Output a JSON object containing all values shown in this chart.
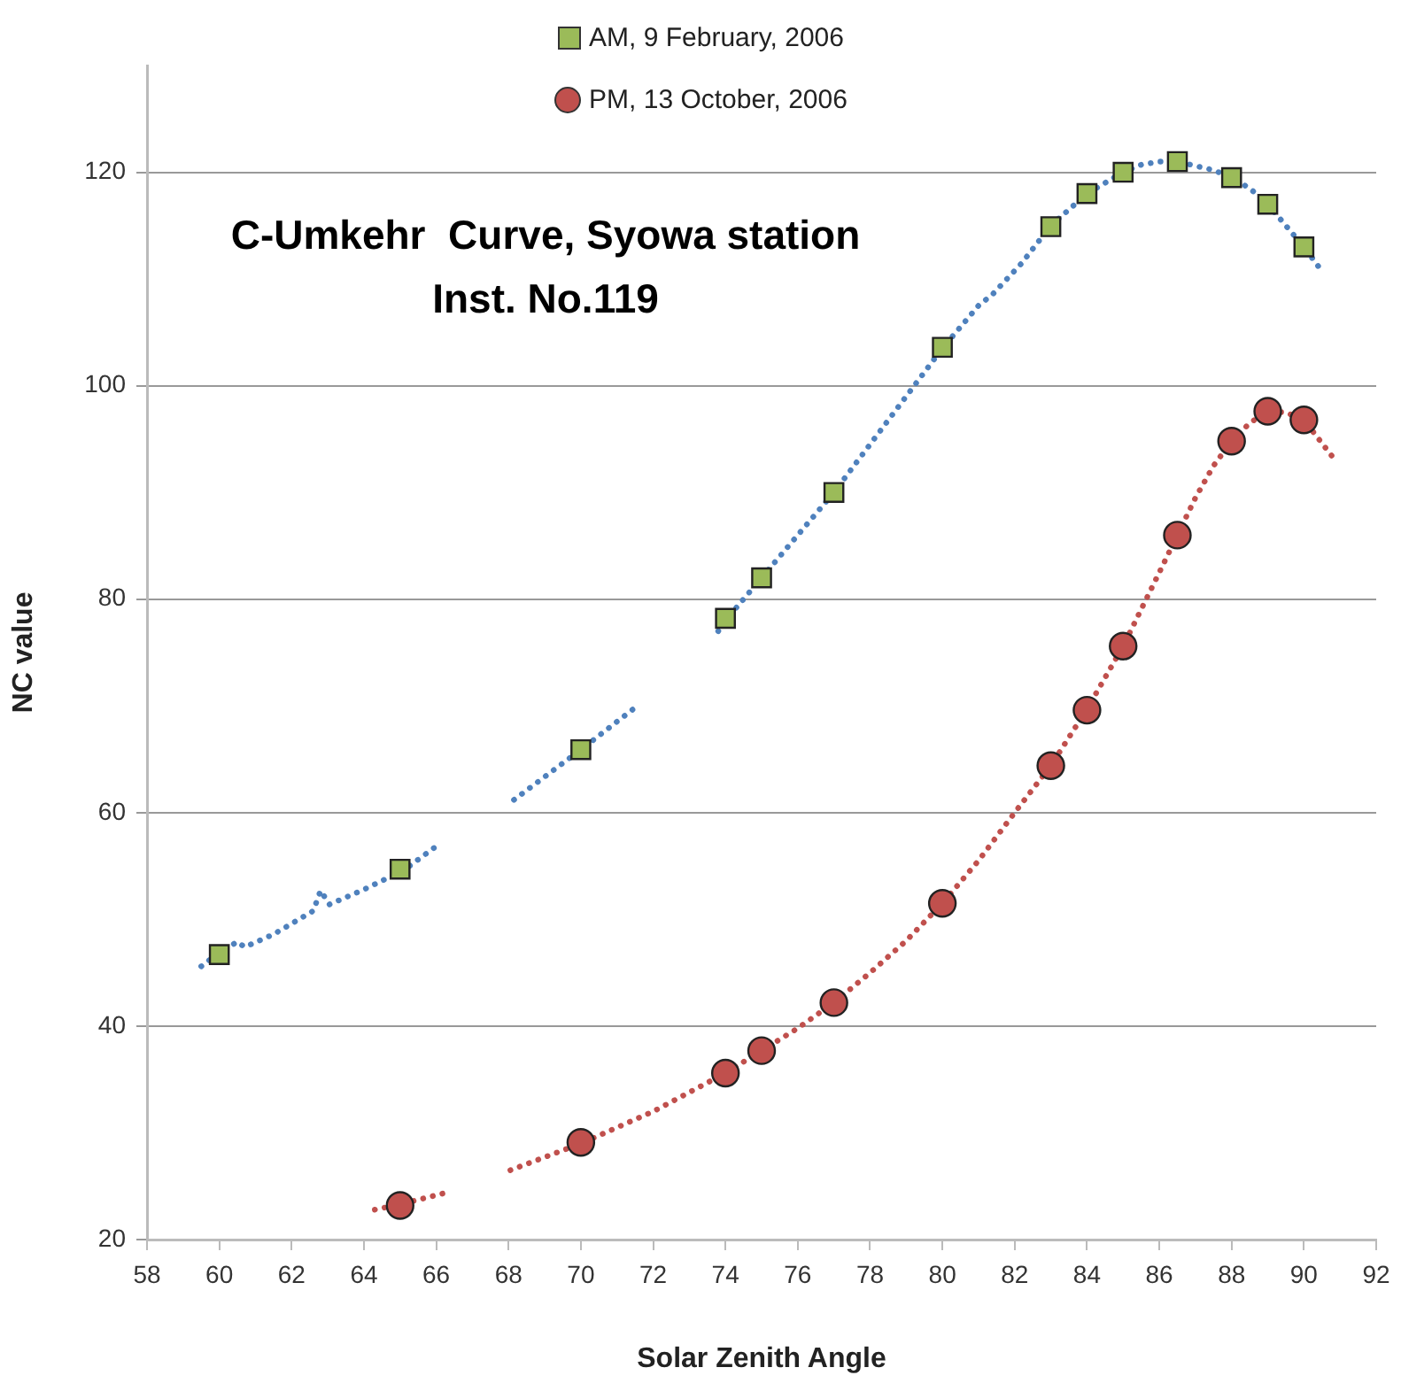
{
  "chart_data": {
    "type": "scatter",
    "title": "C-Umkehr  Curve, Syowa station",
    "subtitle": "Inst. No.119",
    "xlabel": "Solar Zenith Angle",
    "ylabel": "NC value",
    "xlim": [
      58,
      92
    ],
    "xticks": [
      58,
      60,
      62,
      64,
      66,
      68,
      70,
      72,
      74,
      76,
      78,
      80,
      82,
      84,
      86,
      88,
      90,
      92
    ],
    "ylim": [
      20,
      130
    ],
    "yticks": [
      20,
      40,
      60,
      80,
      100,
      120
    ],
    "grid": "y",
    "legend": "top",
    "series": [
      {
        "name": "AM, 9 February, 2006",
        "marker": "square",
        "color": "#9bbb59",
        "x": [
          60,
          65,
          70,
          74,
          75,
          77,
          80,
          83,
          84,
          85,
          86.5,
          88,
          89,
          90
        ],
        "values": [
          46.7,
          54.7,
          65.9,
          78.2,
          82,
          90,
          103.6,
          114.9,
          118,
          120,
          121,
          119.5,
          117,
          113
        ]
      },
      {
        "type": "line",
        "marker": "none",
        "line_style": "dotted",
        "color": "#4f81bd",
        "x": [
          59.5,
          60,
          60.5,
          60.7,
          61.5,
          62.6,
          62.8,
          63.05,
          64,
          65.1,
          66.14,
          67,
          68.15,
          70,
          71.6,
          72.5,
          73.8,
          74,
          75,
          76,
          77,
          78,
          79,
          80,
          81,
          81.4,
          82.2,
          83,
          84,
          85,
          85.5,
          86,
          86.5,
          87,
          87.5,
          88,
          88.5,
          89,
          89.5,
          90,
          90.55
        ],
        "values": [
          45.6,
          46.9,
          47.9,
          47.4,
          48.6,
          50.8,
          52.7,
          51.4,
          52.8,
          54.6,
          57.2,
          null,
          61.2,
          65.9,
          70.1,
          null,
          77,
          78,
          82,
          86,
          90,
          94.5,
          99,
          103.5,
          107.5,
          108.6,
          111.5,
          115,
          118,
          120,
          120.7,
          121,
          121,
          120.6,
          120.2,
          119.5,
          118.5,
          117,
          115,
          113,
          110.5
        ]
      },
      {
        "name": "PM, 13 October, 2006",
        "marker": "circle",
        "color": "#c0504d",
        "x": [
          65,
          70,
          74,
          75,
          77,
          80,
          83,
          84,
          85,
          86.5,
          88,
          89,
          90
        ],
        "values": [
          23.2,
          29.1,
          35.6,
          37.7,
          42.2,
          51.5,
          64.4,
          69.6,
          75.6,
          86,
          94.8,
          97.6,
          96.8
        ]
      },
      {
        "type": "line",
        "marker": "none",
        "line_style": "dotted",
        "color": "#c0504d",
        "x": [
          64.3,
          65,
          65.7,
          66.4,
          67.2,
          68.05,
          70,
          72,
          74,
          75,
          76,
          77,
          78,
          79,
          80,
          81,
          82,
          83,
          84,
          85,
          86,
          86.5,
          87,
          87.5,
          88,
          88.5,
          89,
          89.5,
          90,
          90.8
        ],
        "values": [
          22.8,
          23.3,
          23.9,
          24.5,
          null,
          26.5,
          29,
          32,
          35.6,
          37.7,
          39.8,
          42.2,
          45,
          48,
          51.5,
          55.5,
          60,
          64.4,
          69.7,
          75.6,
          82.5,
          86,
          89.5,
          92.5,
          94.8,
          96.5,
          97.6,
          97.5,
          96.8,
          93.3
        ]
      }
    ]
  }
}
